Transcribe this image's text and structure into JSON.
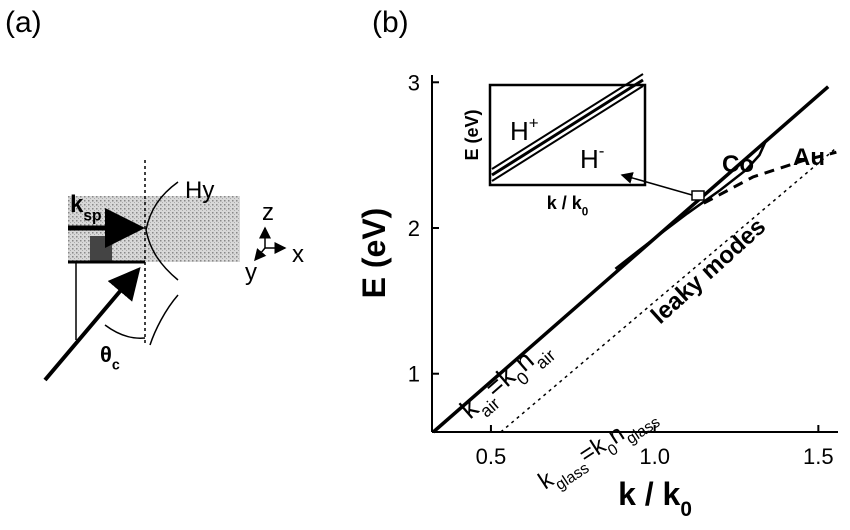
{
  "panel_a": {
    "label": "(a)",
    "k_sp": [
      {
        "text": "k"
      },
      {
        "text": "sp",
        "sub": true
      }
    ],
    "hy": "Hy",
    "z": "z",
    "x": "x",
    "y": "y",
    "theta_c": [
      {
        "text": "θ"
      },
      {
        "text": "c",
        "sub": true
      }
    ]
  },
  "chart_data": {
    "type": "line",
    "panel_label": "(b)",
    "x_label": [
      {
        "text": "k / k"
      },
      {
        "text": "0",
        "sub": true
      }
    ],
    "y_label": "E (eV)",
    "xlim": [
      0.32,
      1.56
    ],
    "ylim": [
      0.6,
      3.05
    ],
    "xticks": [
      0.5,
      {
        "value": 1,
        "label": "1.0"
      },
      1.5
    ],
    "yticks": [
      1,
      2,
      3
    ],
    "series": [
      {
        "color": "#000000",
        "style": "thick",
        "x": [
          0.324,
          1.53
        ],
        "values": [
          0.6,
          2.97
        ]
      },
      {
        "name": "Co",
        "color": "#000000",
        "style": "solid",
        "x": [
          0.88,
          1.0,
          1.1,
          1.2,
          1.28,
          1.32,
          1.34
        ],
        "values": [
          1.72,
          1.93,
          2.1,
          2.26,
          2.4,
          2.5,
          2.6
        ]
      },
      {
        "name": "Au",
        "color": "#000000",
        "style": "dashed",
        "x": [
          1.15,
          1.3,
          1.45,
          1.555
        ],
        "values": [
          2.17,
          2.35,
          2.46,
          2.52
        ]
      },
      {
        "color": "#000000",
        "style": "dotted",
        "x": [
          0.53,
          1.555
        ],
        "values": [
          0.6,
          2.55
        ]
      }
    ],
    "annotations": [
      [
        {
          "text": "k"
        },
        {
          "text": "air",
          "sub": true
        },
        {
          "text": "=k"
        },
        {
          "text": "0",
          "sub": true
        },
        {
          "text": "n"
        },
        {
          "text": "air",
          "sub": true
        }
      ],
      [
        {
          "text": "leaky modes"
        }
      ],
      [
        {
          "text": "k"
        },
        {
          "text": "glass",
          "sub": true
        },
        {
          "text": "=k"
        },
        {
          "text": "0",
          "sub": true
        },
        {
          "text": "n"
        },
        {
          "text": "glass",
          "sub": true
        }
      ]
    ],
    "inset": {
      "y_label": "E (eV)",
      "x_label": [
        {
          "text": "k / k"
        },
        {
          "text": "0",
          "sub": true
        }
      ],
      "labels": [
        [
          {
            "text": "H"
          },
          {
            "text": "+",
            "sup": true
          }
        ],
        [
          {
            "text": "H"
          },
          {
            "text": "-",
            "sup": true
          }
        ]
      ]
    }
  }
}
